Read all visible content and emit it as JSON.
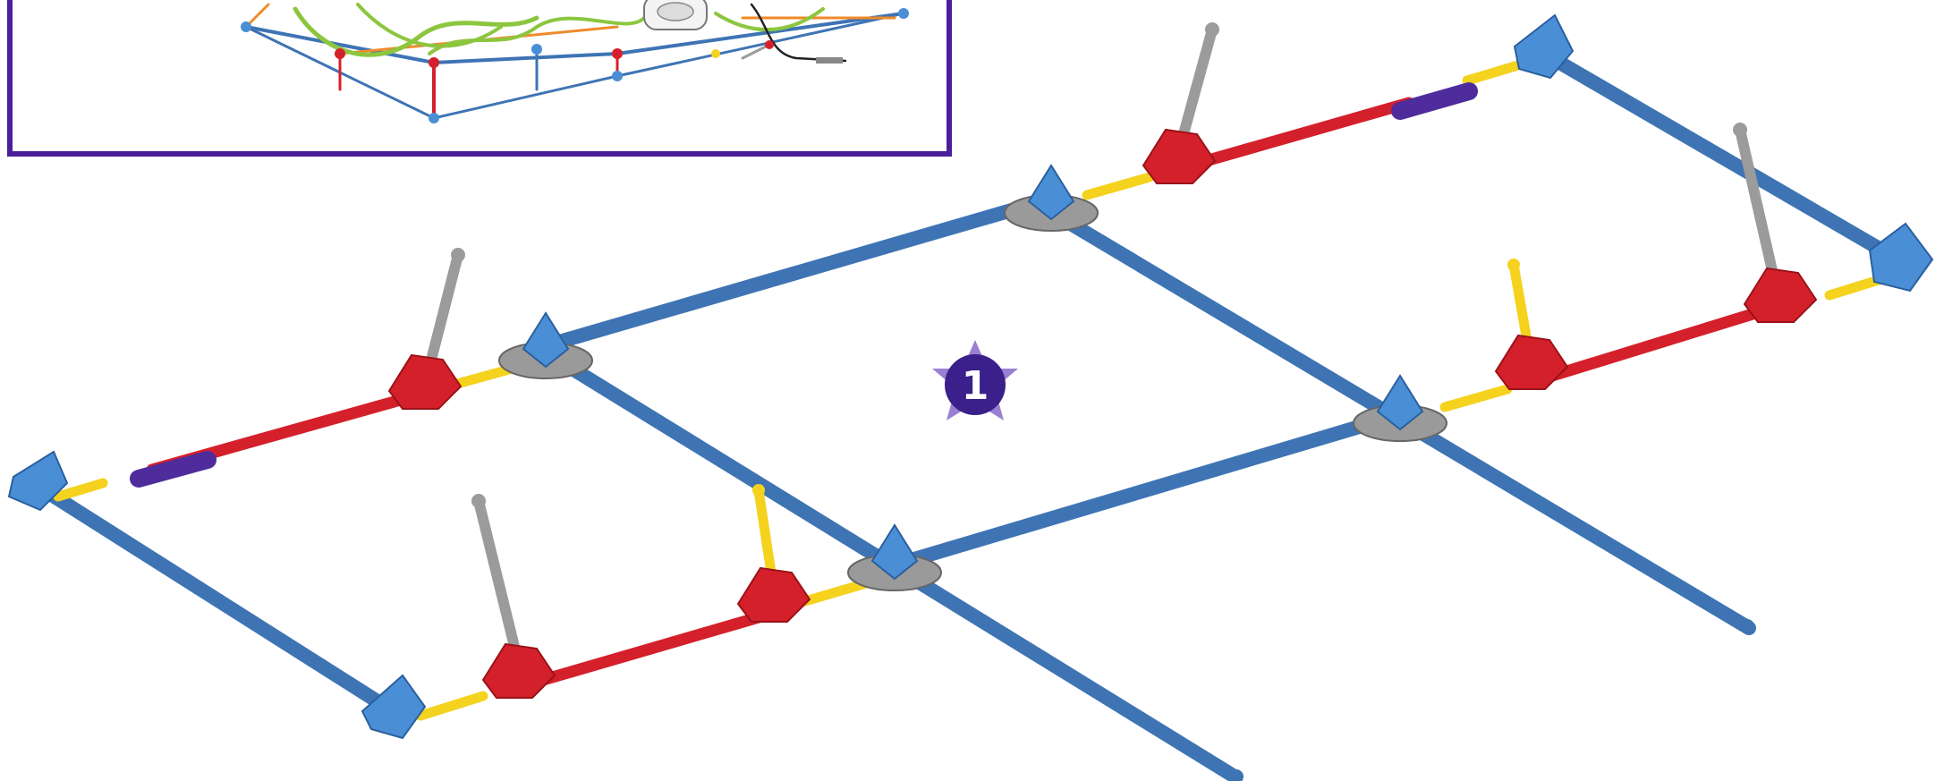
{
  "step": {
    "number": "1"
  },
  "colors": {
    "blue_rod": "#3e74b4",
    "red_rod": "#d4202a",
    "yellow_rod": "#f5d21e",
    "gray_rod": "#9b9b9b",
    "purple_connector": "#4f2c9c",
    "connector_blue": "#4a8fd6",
    "connector_red": "#d4202a",
    "connector_gray": "#9a9a9a",
    "inset_border": "#4a1f9a",
    "green_track": "#8cc63f",
    "orange_rod": "#f08a2a",
    "star": "#9b7fd1",
    "step_circle": "#3b1f8a"
  },
  "icons": {
    "step_badge": "star-badge-icon",
    "inset": "completed-model-thumbnail",
    "connector": "knex-connector-icon"
  }
}
